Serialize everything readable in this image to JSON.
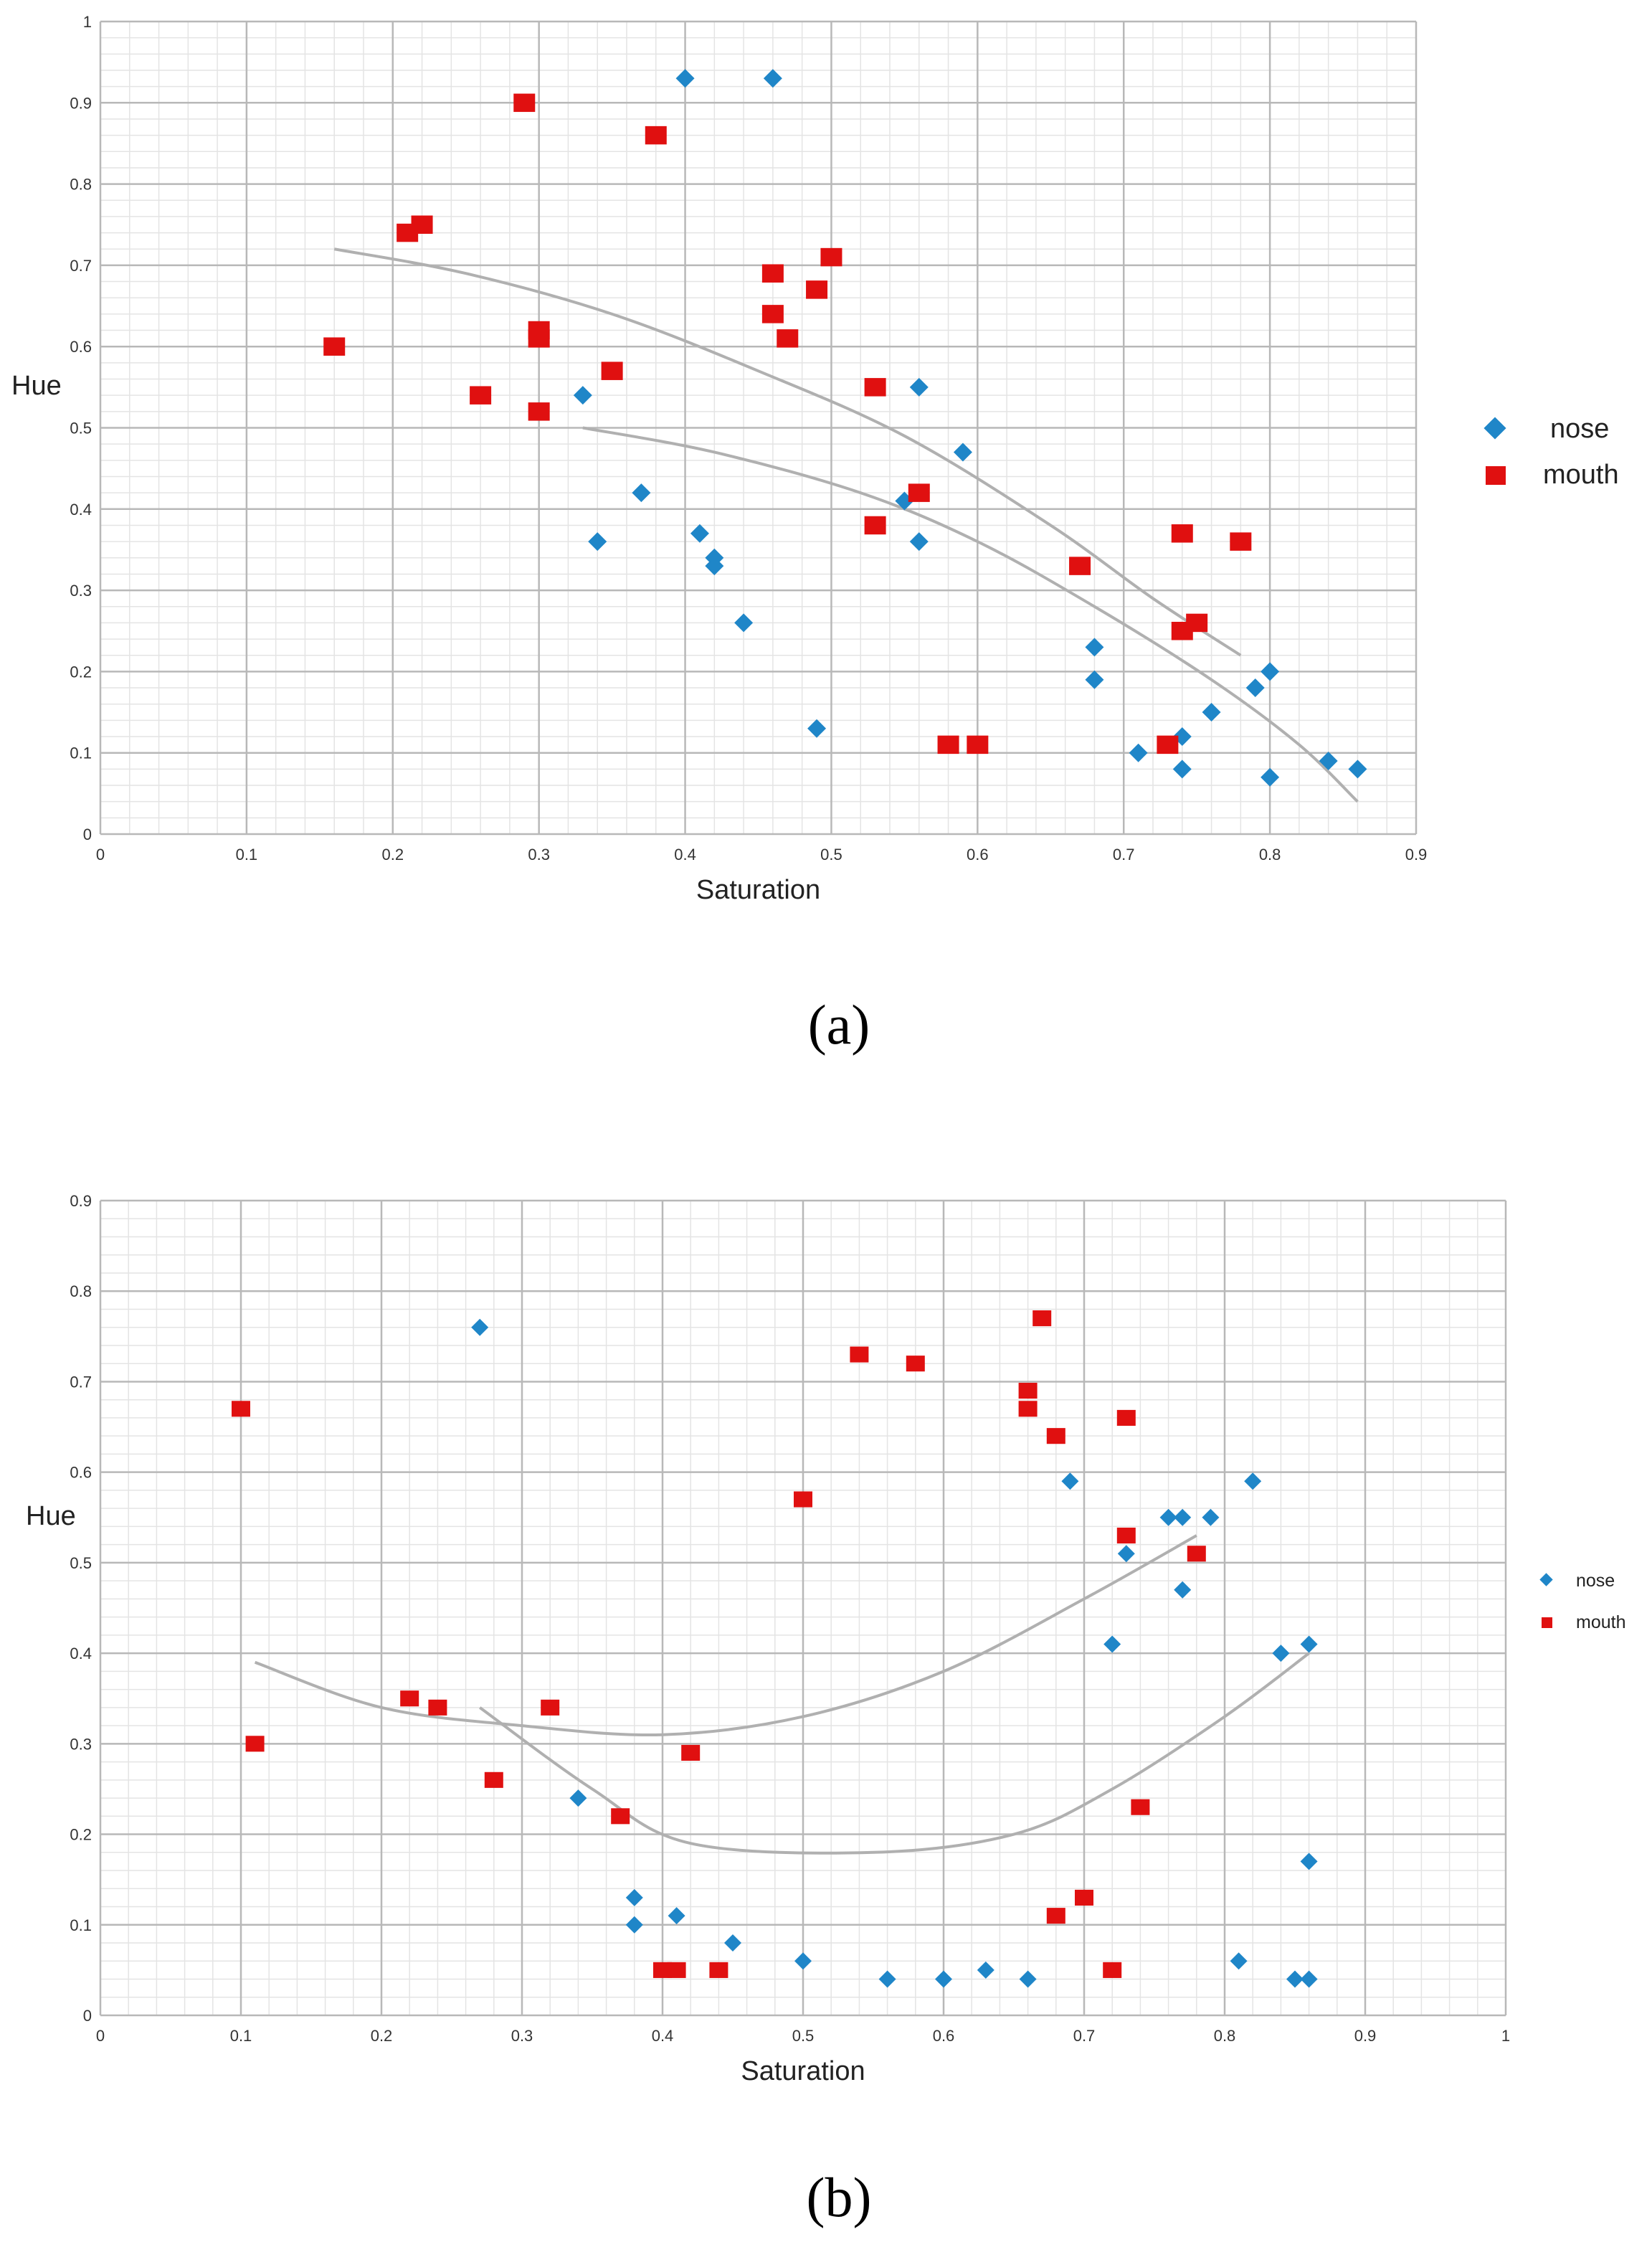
{
  "colors": {
    "nose": "#1f86c8",
    "mouth": "#e01010",
    "grid_major": "#b8b8b8",
    "grid_minor": "#e4e4e4",
    "curve": "#b0b0b0"
  },
  "chart_data": [
    {
      "type": "scatter",
      "caption": "(a)",
      "xlabel": "Saturation",
      "ylabel": "Hue",
      "xlim": [
        0,
        0.9
      ],
      "ylim": [
        0,
        1
      ],
      "xticks": [
        "0",
        "0.1",
        "0.2",
        "0.3",
        "0.4",
        "0.5",
        "0.6",
        "0.7",
        "0.8",
        "0.9"
      ],
      "yticks": [
        "0",
        "0.1",
        "0.2",
        "0.3",
        "0.4",
        "0.5",
        "0.6",
        "0.7",
        "0.8",
        "0.9",
        "1"
      ],
      "legend": {
        "position": "right",
        "entries": [
          "nose",
          "mouth"
        ]
      },
      "series": [
        {
          "name": "nose",
          "marker": "diamond",
          "points": [
            [
              0.4,
              0.93
            ],
            [
              0.46,
              0.93
            ],
            [
              0.33,
              0.54
            ],
            [
              0.37,
              0.42
            ],
            [
              0.34,
              0.36
            ],
            [
              0.41,
              0.37
            ],
            [
              0.42,
              0.34
            ],
            [
              0.42,
              0.33
            ],
            [
              0.44,
              0.26
            ],
            [
              0.49,
              0.13
            ],
            [
              0.56,
              0.55
            ],
            [
              0.59,
              0.47
            ],
            [
              0.55,
              0.41
            ],
            [
              0.56,
              0.36
            ],
            [
              0.68,
              0.23
            ],
            [
              0.68,
              0.19
            ],
            [
              0.71,
              0.1
            ],
            [
              0.74,
              0.12
            ],
            [
              0.74,
              0.08
            ],
            [
              0.76,
              0.15
            ],
            [
              0.79,
              0.18
            ],
            [
              0.8,
              0.2
            ],
            [
              0.8,
              0.07
            ],
            [
              0.84,
              0.09
            ],
            [
              0.86,
              0.08
            ]
          ]
        },
        {
          "name": "mouth",
          "marker": "square",
          "points": [
            [
              0.16,
              0.6
            ],
            [
              0.21,
              0.74
            ],
            [
              0.22,
              0.75
            ],
            [
              0.26,
              0.54
            ],
            [
              0.29,
              0.9
            ],
            [
              0.3,
              0.62
            ],
            [
              0.3,
              0.61
            ],
            [
              0.3,
              0.52
            ],
            [
              0.35,
              0.57
            ],
            [
              0.38,
              0.86
            ],
            [
              0.46,
              0.69
            ],
            [
              0.46,
              0.64
            ],
            [
              0.47,
              0.61
            ],
            [
              0.49,
              0.67
            ],
            [
              0.5,
              0.71
            ],
            [
              0.53,
              0.55
            ],
            [
              0.53,
              0.38
            ],
            [
              0.56,
              0.42
            ],
            [
              0.58,
              0.11
            ],
            [
              0.6,
              0.11
            ],
            [
              0.67,
              0.33
            ],
            [
              0.73,
              0.11
            ],
            [
              0.74,
              0.37
            ],
            [
              0.74,
              0.25
            ],
            [
              0.75,
              0.26
            ],
            [
              0.78,
              0.36
            ]
          ]
        }
      ],
      "trend_curves": [
        [
          [
            0.16,
            0.72
          ],
          [
            0.25,
            0.69
          ],
          [
            0.35,
            0.64
          ],
          [
            0.45,
            0.57
          ],
          [
            0.55,
            0.49
          ],
          [
            0.65,
            0.38
          ],
          [
            0.72,
            0.29
          ],
          [
            0.78,
            0.22
          ]
        ],
        [
          [
            0.33,
            0.5
          ],
          [
            0.42,
            0.47
          ],
          [
            0.52,
            0.42
          ],
          [
            0.6,
            0.36
          ],
          [
            0.68,
            0.28
          ],
          [
            0.76,
            0.19
          ],
          [
            0.82,
            0.11
          ],
          [
            0.86,
            0.04
          ]
        ]
      ]
    },
    {
      "type": "scatter",
      "caption": "(b)",
      "xlabel": "Saturation",
      "ylabel": "Hue",
      "xlim": [
        0,
        1
      ],
      "ylim": [
        0,
        0.9
      ],
      "xticks": [
        "0",
        "0.1",
        "0.2",
        "0.3",
        "0.4",
        "0.5",
        "0.6",
        "0.7",
        "0.8",
        "0.9",
        "1"
      ],
      "yticks": [
        "0",
        "0.1",
        "0.2",
        "0.3",
        "0.4",
        "0.5",
        "0.6",
        "0.7",
        "0.8",
        "0.9"
      ],
      "legend": {
        "position": "right",
        "entries": [
          "nose",
          "mouth"
        ]
      },
      "series": [
        {
          "name": "nose",
          "marker": "diamond",
          "points": [
            [
              0.27,
              0.76
            ],
            [
              0.34,
              0.24
            ],
            [
              0.38,
              0.13
            ],
            [
              0.38,
              0.1
            ],
            [
              0.41,
              0.11
            ],
            [
              0.45,
              0.08
            ],
            [
              0.5,
              0.06
            ],
            [
              0.56,
              0.04
            ],
            [
              0.6,
              0.04
            ],
            [
              0.63,
              0.05
            ],
            [
              0.66,
              0.04
            ],
            [
              0.69,
              0.59
            ],
            [
              0.72,
              0.41
            ],
            [
              0.73,
              0.51
            ],
            [
              0.76,
              0.55
            ],
            [
              0.77,
              0.55
            ],
            [
              0.77,
              0.47
            ],
            [
              0.79,
              0.55
            ],
            [
              0.82,
              0.59
            ],
            [
              0.81,
              0.06
            ],
            [
              0.84,
              0.4
            ],
            [
              0.85,
              0.04
            ],
            [
              0.86,
              0.04
            ],
            [
              0.86,
              0.41
            ],
            [
              0.86,
              0.17
            ]
          ]
        },
        {
          "name": "mouth",
          "marker": "square",
          "points": [
            [
              0.1,
              0.67
            ],
            [
              0.11,
              0.3
            ],
            [
              0.22,
              0.35
            ],
            [
              0.24,
              0.34
            ],
            [
              0.28,
              0.26
            ],
            [
              0.32,
              0.34
            ],
            [
              0.37,
              0.22
            ],
            [
              0.4,
              0.05
            ],
            [
              0.41,
              0.05
            ],
            [
              0.42,
              0.29
            ],
            [
              0.44,
              0.05
            ],
            [
              0.5,
              0.57
            ],
            [
              0.54,
              0.73
            ],
            [
              0.58,
              0.72
            ],
            [
              0.66,
              0.69
            ],
            [
              0.66,
              0.67
            ],
            [
              0.67,
              0.77
            ],
            [
              0.68,
              0.64
            ],
            [
              0.68,
              0.11
            ],
            [
              0.7,
              0.13
            ],
            [
              0.72,
              0.05
            ],
            [
              0.73,
              0.53
            ],
            [
              0.73,
              0.66
            ],
            [
              0.74,
              0.23
            ],
            [
              0.78,
              0.51
            ]
          ]
        }
      ],
      "trend_curves": [
        [
          [
            0.11,
            0.39
          ],
          [
            0.2,
            0.34
          ],
          [
            0.3,
            0.32
          ],
          [
            0.4,
            0.31
          ],
          [
            0.5,
            0.33
          ],
          [
            0.6,
            0.38
          ],
          [
            0.7,
            0.46
          ],
          [
            0.78,
            0.53
          ]
        ],
        [
          [
            0.27,
            0.34
          ],
          [
            0.35,
            0.25
          ],
          [
            0.42,
            0.19
          ],
          [
            0.55,
            0.18
          ],
          [
            0.65,
            0.2
          ],
          [
            0.72,
            0.25
          ],
          [
            0.8,
            0.33
          ],
          [
            0.86,
            0.4
          ]
        ]
      ]
    }
  ]
}
